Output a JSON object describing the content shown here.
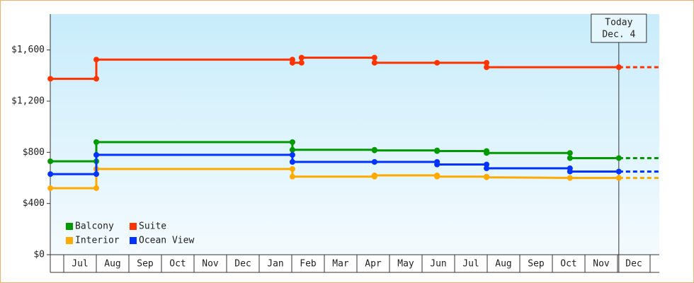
{
  "chart_data": {
    "type": "step-line",
    "xlim": [
      -0.41,
      18.28
    ],
    "xticks": [
      {
        "value": 0.5,
        "label": "Jul"
      },
      {
        "value": 1.5,
        "label": "Aug"
      },
      {
        "value": 2.5,
        "label": "Sep"
      },
      {
        "value": 3.5,
        "label": "Oct"
      },
      {
        "value": 4.5,
        "label": "Nov"
      },
      {
        "value": 5.5,
        "label": "Dec"
      },
      {
        "value": 6.5,
        "label": "Jan"
      },
      {
        "value": 7.5,
        "label": "Feb"
      },
      {
        "value": 8.5,
        "label": "Mar"
      },
      {
        "value": 9.5,
        "label": "Apr"
      },
      {
        "value": 10.5,
        "label": "May"
      },
      {
        "value": 11.5,
        "label": "Jun"
      },
      {
        "value": 12.5,
        "label": "Jul"
      },
      {
        "value": 13.5,
        "label": "Aug"
      },
      {
        "value": 14.5,
        "label": "Sep"
      },
      {
        "value": 15.5,
        "label": "Oct"
      },
      {
        "value": 16.5,
        "label": "Nov"
      },
      {
        "value": 17.5,
        "label": "Dec"
      }
    ],
    "ylim": [
      0,
      1880
    ],
    "yticks": [
      {
        "value": 0,
        "label": "$0"
      },
      {
        "value": 400,
        "label": "$400"
      },
      {
        "value": 800,
        "label": "$800"
      },
      {
        "value": 1200,
        "label": "$1,200"
      },
      {
        "value": 1600,
        "label": "$1,600"
      }
    ],
    "today": {
      "x": 17.04,
      "label": [
        "Today",
        "Dec. 4"
      ]
    },
    "series": [
      {
        "name": "Balcony",
        "color": "#009900",
        "x": [
          -0.41,
          1,
          1,
          7.02,
          7.02,
          9.54,
          9.54,
          11.46,
          11.46,
          12.98,
          12.98,
          15.54,
          15.54,
          17.04
        ],
        "values": [
          730,
          730,
          880,
          880,
          820,
          820,
          815,
          815,
          810,
          810,
          795,
          795,
          755,
          755
        ]
      },
      {
        "name": "Suite",
        "color": "#ff3300",
        "x": [
          -0.41,
          1,
          1,
          7.02,
          7.02,
          7.3,
          7.3,
          9.54,
          9.54,
          11.46,
          12.98,
          12.98,
          17.04
        ],
        "values": [
          1375,
          1375,
          1525,
          1525,
          1500,
          1500,
          1540,
          1540,
          1500,
          1500,
          1500,
          1465,
          1465
        ]
      },
      {
        "name": "Interior",
        "color": "#ffaa00",
        "x": [
          -0.41,
          1,
          1,
          7.02,
          7.02,
          9.54,
          9.54,
          11.46,
          11.46,
          12.98,
          12.98,
          15.54,
          17.04
        ],
        "values": [
          520,
          520,
          670,
          670,
          610,
          610,
          620,
          620,
          610,
          610,
          605,
          600,
          600
        ]
      },
      {
        "name": "Ocean View",
        "color": "#0033ff",
        "x": [
          -0.41,
          1,
          1,
          7.02,
          7.02,
          9.54,
          11.46,
          11.46,
          12.98,
          12.98,
          15.54,
          15.54,
          17.04
        ],
        "values": [
          630,
          630,
          780,
          780,
          725,
          725,
          725,
          705,
          705,
          675,
          675,
          650,
          650
        ]
      }
    ]
  }
}
